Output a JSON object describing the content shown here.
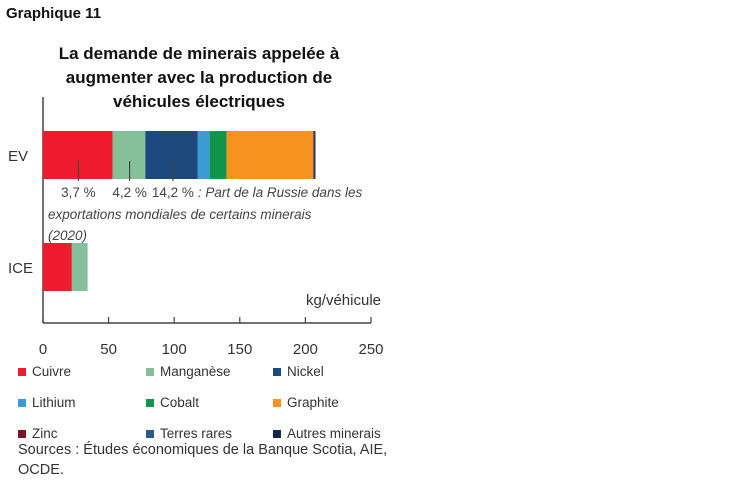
{
  "header": {
    "graph_label": "Graphique 11"
  },
  "chart_data": {
    "type": "bar",
    "orientation": "horizontal",
    "stacked": true,
    "title": "La demande de minerais appelée à augmenter avec la production de véhicules électriques",
    "xlabel": "kg/véhicule",
    "xlim": [
      0,
      250
    ],
    "xticks": [
      "0",
      "50",
      "100",
      "150",
      "200",
      "250"
    ],
    "grid": false,
    "legend_position": "bottom",
    "categories": [
      "EV",
      "ICE"
    ],
    "series": [
      {
        "name": "Cuivre",
        "color": "#ee1c2e",
        "values": [
          53,
          22
        ]
      },
      {
        "name": "Manganèse",
        "color": "#86c09a",
        "values": [
          25,
          12
        ]
      },
      {
        "name": "Nickel",
        "color": "#1c4a7e",
        "values": [
          40,
          0
        ]
      },
      {
        "name": "Lithium",
        "color": "#3b9bd3",
        "values": [
          9,
          0
        ]
      },
      {
        "name": "Cobalt",
        "color": "#10964c",
        "values": [
          13,
          0
        ]
      },
      {
        "name": "Graphite",
        "color": "#f7921e",
        "values": [
          66,
          0
        ]
      },
      {
        "name": "Zinc",
        "color": "#7a1524",
        "values": [
          0.4,
          0
        ]
      },
      {
        "name": "Terres rares",
        "color": "#2a5a8c",
        "values": [
          0.5,
          0
        ]
      },
      {
        "name": "Autres minerais",
        "color": "#14284b",
        "values": [
          0.6,
          0
        ]
      }
    ],
    "annotations": [
      {
        "x": 27,
        "text": "3,7 %"
      },
      {
        "x": 66,
        "text": "4,2 %"
      },
      {
        "x": 99,
        "text": "14,2 %"
      }
    ],
    "annotation_note": {
      "line1": " : Part de la Russie dans les",
      "line2": "exportations mondiales de certains minerais",
      "line3": "(2020)"
    }
  },
  "footer": {
    "sources": "Sources : Études économiques de la Banque Scotia, AIE, OCDE."
  }
}
